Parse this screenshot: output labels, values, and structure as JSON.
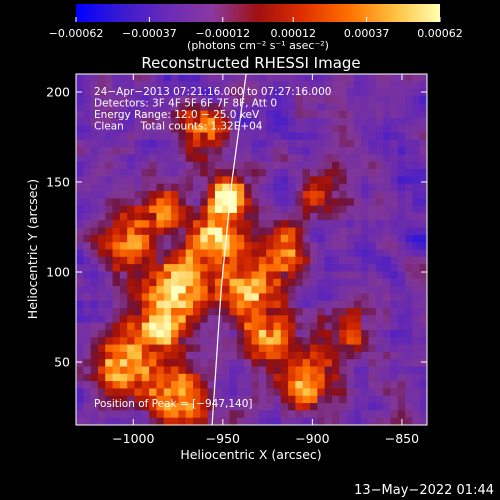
{
  "chart_data": {
    "type": "heatmap",
    "title": "Reconstructed RHESSI Image",
    "xlabel": "Heliocentric X (arcsec)",
    "ylabel": "Heliocentric Y (arcsec)",
    "xlim": [
      -1032,
      -836
    ],
    "ylim": [
      15,
      210
    ],
    "x_ticks": [
      -1000,
      -950,
      -900,
      -850
    ],
    "x_tick_labels": [
      "−1000",
      "−950",
      "−900",
      "−850"
    ],
    "y_ticks": [
      50,
      100,
      150,
      200
    ],
    "y_tick_labels": [
      "50",
      "100",
      "150",
      "200"
    ],
    "colorbar": {
      "range": [
        -0.00062,
        0.00062
      ],
      "ticks": [
        -0.00062,
        -0.00037,
        -0.00012,
        0.00012,
        0.00037,
        0.00062
      ],
      "tick_labels": [
        "−0.00062",
        "−0.00037",
        "−0.00012",
        "0.00012",
        "0.00037",
        "0.00062"
      ],
      "units": "(photons cm⁻² s⁻¹ asec⁻²)",
      "colors": [
        "#0000ff",
        "#3a1ad0",
        "#6a2ab8",
        "#8a3aa0",
        "#a01010",
        "#e03000",
        "#ff7000",
        "#ffc040",
        "#ffffb0"
      ]
    },
    "annotations": [
      "24−Apr−2013 07:21:16.000 to 07:27:16.000",
      "Detectors: 3F 4F 5F 6F 7F 8F, Att 0",
      "Energy Range: 12.0 − 25.0 keV",
      "Clean     Total counts: 1.32E+04"
    ],
    "peak_label": "Position of Peak = [−947,140]",
    "peak": [
      -947,
      140
    ],
    "limb_points": [
      [
        -937,
        210
      ],
      [
        -941,
        180
      ],
      [
        -945,
        150
      ],
      [
        -948,
        120
      ],
      [
        -951,
        90
      ],
      [
        -953,
        60
      ],
      [
        -955,
        30
      ],
      [
        -956,
        15
      ]
    ],
    "hot_regions": [
      {
        "x": -947,
        "y": 140,
        "sigma": 7,
        "amp": 1.0
      },
      {
        "x": -955,
        "y": 118,
        "sigma": 10,
        "amp": 0.55
      },
      {
        "x": -975,
        "y": 92,
        "sigma": 12,
        "amp": 0.6
      },
      {
        "x": -985,
        "y": 70,
        "sigma": 10,
        "amp": 0.55
      },
      {
        "x": -1005,
        "y": 48,
        "sigma": 12,
        "amp": 0.6
      },
      {
        "x": -975,
        "y": 30,
        "sigma": 12,
        "amp": 0.55
      },
      {
        "x": -935,
        "y": 92,
        "sigma": 12,
        "amp": 0.55
      },
      {
        "x": -925,
        "y": 65,
        "sigma": 10,
        "amp": 0.5
      },
      {
        "x": -905,
        "y": 40,
        "sigma": 12,
        "amp": 0.5
      },
      {
        "x": -915,
        "y": 112,
        "sigma": 10,
        "amp": 0.45
      },
      {
        "x": -985,
        "y": 135,
        "sigma": 10,
        "amp": 0.5
      },
      {
        "x": -1005,
        "y": 115,
        "sigma": 10,
        "amp": 0.45
      },
      {
        "x": -960,
        "y": 178,
        "sigma": 10,
        "amp": 0.45
      },
      {
        "x": -880,
        "y": 70,
        "sigma": 10,
        "amp": 0.35
      },
      {
        "x": -895,
        "y": 145,
        "sigma": 10,
        "amp": 0.3
      }
    ]
  },
  "footer": {
    "timestamp": "13−May−2022 01:44"
  }
}
